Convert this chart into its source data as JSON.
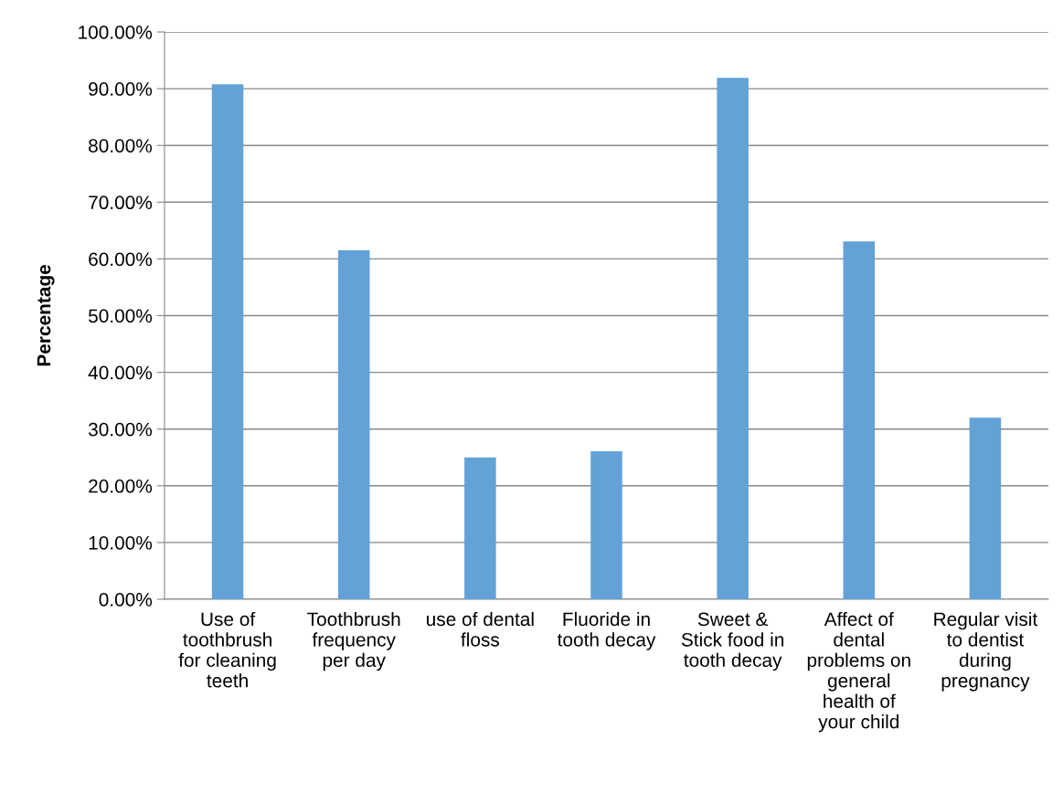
{
  "chart_data": {
    "type": "bar",
    "ylabel": "Percentage",
    "categories": [
      "Use of\ntoothbrush\nfor cleaning\nteeth",
      "Toothbrush\nfrequency\nper day",
      "use of dental\nfloss",
      "Fluoride in\ntooth decay",
      "Sweet &\nStick food in\ntooth decay",
      "Affect of\ndental\nproblems on\ngeneral\nhealth of\nyour child",
      "Regular visit\nto dentist\nduring\npregnancy"
    ],
    "values": [
      90.8,
      61.5,
      25.0,
      26.1,
      91.9,
      63.1,
      32.0
    ],
    "color": "#62a2d7",
    "ylim": [
      0,
      100
    ],
    "yticks": [
      {
        "value": 0,
        "label": "0.00%"
      },
      {
        "value": 10,
        "label": "10.00%"
      },
      {
        "value": 20,
        "label": "20.00%"
      },
      {
        "value": 30,
        "label": "30.00%"
      },
      {
        "value": 40,
        "label": "40.00%"
      },
      {
        "value": 50,
        "label": "50.00%"
      },
      {
        "value": 60,
        "label": "60.00%"
      },
      {
        "value": 70,
        "label": "70.00%"
      },
      {
        "value": 80,
        "label": "80.00%"
      },
      {
        "value": 90,
        "label": "90.00%"
      },
      {
        "value": 100,
        "label": "100.00%"
      }
    ],
    "grid": "y"
  }
}
